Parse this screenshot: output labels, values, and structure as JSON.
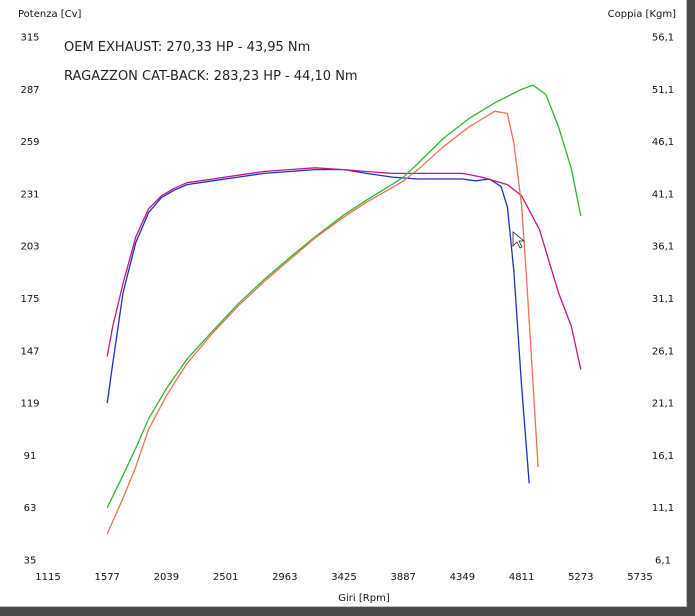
{
  "chart_data": {
    "type": "line",
    "annotations": [
      "OEM EXHAUST: 270,33 HP - 43,95 Nm",
      "RAGAZZON CAT-BACK: 283,23 HP - 44,10 Nm"
    ],
    "xlabel": "Giri [Rpm]",
    "ylabel_left": "Potenza [Cv]",
    "ylabel_right": "Coppia [Kgm]",
    "xlim": [
      1115,
      5735
    ],
    "ylim_left": [
      35,
      315
    ],
    "ylim_right": [
      6.1,
      56.1
    ],
    "x_ticks": [
      "1115",
      "1577",
      "2039",
      "2501",
      "2963",
      "3425",
      "3887",
      "4349",
      "4811",
      "5273",
      "5735"
    ],
    "y_ticks_left": [
      "35",
      "63",
      "91",
      "119",
      "147",
      "175",
      "203",
      "231",
      "259",
      "287",
      "315"
    ],
    "y_ticks_right": [
      "6,1",
      "11,1",
      "16,1",
      "21,1",
      "26,1",
      "31,1",
      "36,1",
      "41,1",
      "46,1",
      "51,1",
      "56,1"
    ],
    "grid": false,
    "series": [
      {
        "axis": "left",
        "color": "#1f2fbf",
        "points": [
          [
            1577,
            119
          ],
          [
            1620,
            140
          ],
          [
            1700,
            178
          ],
          [
            1800,
            205
          ],
          [
            1900,
            221
          ],
          [
            2000,
            229
          ],
          [
            2100,
            233
          ],
          [
            2200,
            236
          ],
          [
            2400,
            238
          ],
          [
            2600,
            240
          ],
          [
            2800,
            242
          ],
          [
            3000,
            243
          ],
          [
            3200,
            244
          ],
          [
            3425,
            244
          ],
          [
            3600,
            242
          ],
          [
            3800,
            240
          ],
          [
            4000,
            239
          ],
          [
            4200,
            239
          ],
          [
            4349,
            239
          ],
          [
            4450,
            238
          ],
          [
            4560,
            239
          ],
          [
            4650,
            235
          ],
          [
            4700,
            224
          ],
          [
            4750,
            190
          ],
          [
            4811,
            128
          ],
          [
            4870,
            76
          ]
        ]
      },
      {
        "axis": "left",
        "color": "#c01880",
        "points": [
          [
            1577,
            144
          ],
          [
            1620,
            160
          ],
          [
            1700,
            183
          ],
          [
            1800,
            208
          ],
          [
            1900,
            223
          ],
          [
            2000,
            230
          ],
          [
            2100,
            234
          ],
          [
            2200,
            237
          ],
          [
            2400,
            239
          ],
          [
            2600,
            241
          ],
          [
            2800,
            243
          ],
          [
            3000,
            244
          ],
          [
            3200,
            245
          ],
          [
            3425,
            244
          ],
          [
            3600,
            243
          ],
          [
            3800,
            242
          ],
          [
            4000,
            242
          ],
          [
            4200,
            242
          ],
          [
            4349,
            242
          ],
          [
            4500,
            240
          ],
          [
            4700,
            236
          ],
          [
            4811,
            230
          ],
          [
            4950,
            212
          ],
          [
            5100,
            178
          ],
          [
            5200,
            160
          ],
          [
            5273,
            137
          ]
        ]
      },
      {
        "axis": "right",
        "color": "#2eb82e",
        "points": [
          [
            1577,
            11.1
          ],
          [
            1700,
            14.2
          ],
          [
            1800,
            16.8
          ],
          [
            1900,
            19.6
          ],
          [
            2039,
            22.5
          ],
          [
            2200,
            25.3
          ],
          [
            2400,
            28.0
          ],
          [
            2600,
            30.6
          ],
          [
            2800,
            32.9
          ],
          [
            3000,
            35.0
          ],
          [
            3200,
            37.0
          ],
          [
            3425,
            39.1
          ],
          [
            3600,
            40.5
          ],
          [
            3800,
            42.0
          ],
          [
            3887,
            42.7
          ],
          [
            4000,
            44.0
          ],
          [
            4200,
            46.4
          ],
          [
            4400,
            48.3
          ],
          [
            4600,
            49.8
          ],
          [
            4811,
            51.1
          ],
          [
            4900,
            51.5
          ],
          [
            5000,
            50.6
          ],
          [
            5100,
            47.5
          ],
          [
            5200,
            43.5
          ],
          [
            5273,
            39.0
          ]
        ]
      },
      {
        "axis": "right",
        "color": "#f07050",
        "points": [
          [
            1577,
            8.6
          ],
          [
            1700,
            12.0
          ],
          [
            1800,
            15.0
          ],
          [
            1900,
            18.6
          ],
          [
            2039,
            21.8
          ],
          [
            2200,
            24.9
          ],
          [
            2400,
            27.8
          ],
          [
            2600,
            30.4
          ],
          [
            2800,
            32.7
          ],
          [
            3000,
            34.8
          ],
          [
            3200,
            36.9
          ],
          [
            3425,
            38.9
          ],
          [
            3600,
            40.3
          ],
          [
            3800,
            41.7
          ],
          [
            3887,
            42.3
          ],
          [
            4000,
            43.4
          ],
          [
            4200,
            45.6
          ],
          [
            4400,
            47.5
          ],
          [
            4600,
            49.0
          ],
          [
            4700,
            48.8
          ],
          [
            4750,
            46.0
          ],
          [
            4811,
            40.0
          ],
          [
            4850,
            33.0
          ],
          [
            4900,
            23.0
          ],
          [
            4940,
            15.0
          ]
        ]
      }
    ]
  }
}
